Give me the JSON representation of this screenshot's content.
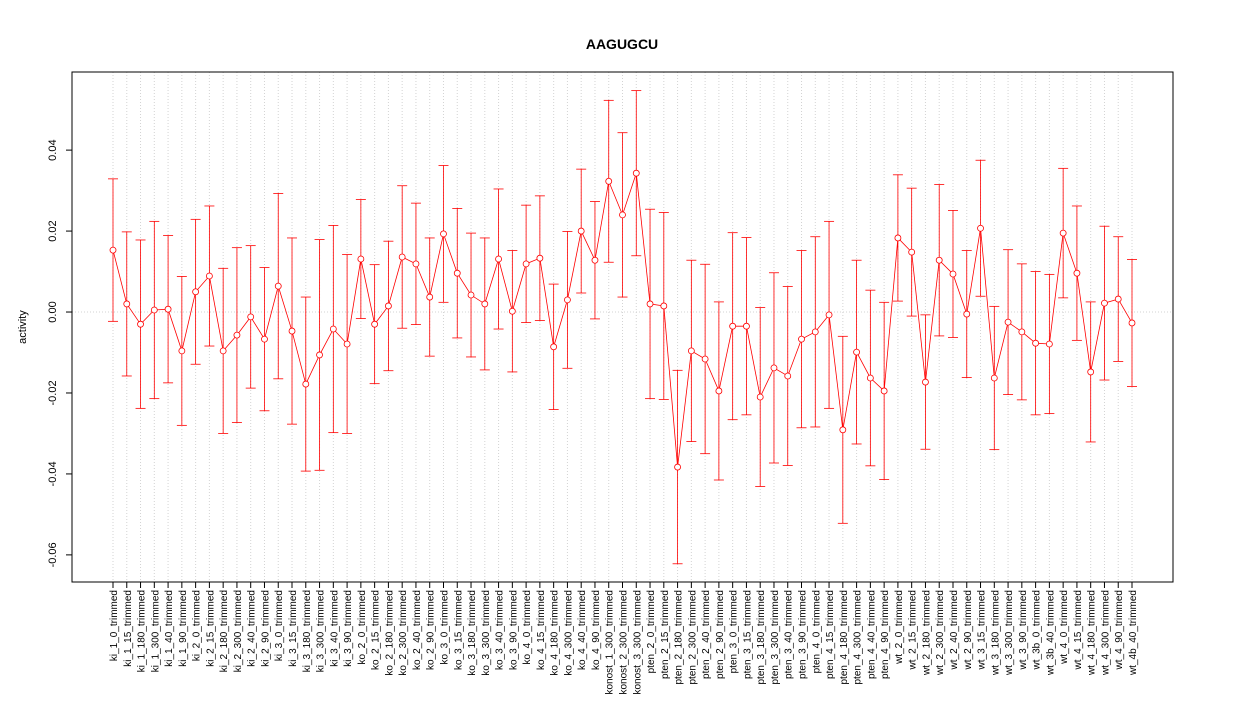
{
  "chart_data": {
    "type": "line_errorbar",
    "title": "AAGUGCU",
    "ylabel": "activity",
    "categories": [
      "ki_1_0_trimmed",
      "ki_1_15_trimmed",
      "ki_1_180_trimmed",
      "ki_1_300_trimmed",
      "ki_1_40_trimmed",
      "ki_1_90_trimmed",
      "ki_2_0_trimmed",
      "ki_2_15_trimmed",
      "ki_2_180_trimmed",
      "ki_2_300_trimmed",
      "ki_2_40_trimmed",
      "ki_2_90_trimmed",
      "ki_3_0_trimmed",
      "ki_3_15_trimmed",
      "ki_3_180_trimmed",
      "ki_3_300_trimmed",
      "ki_3_40_trimmed",
      "ki_3_90_trimmed",
      "ko_2_0_trimmed",
      "ko_2_15_trimmed",
      "ko_2_180_trimmed",
      "ko_2_300_trimmed",
      "ko_2_40_trimmed",
      "ko_2_90_trimmed",
      "ko_3_0_trimmed",
      "ko_3_15_trimmed",
      "ko_3_180_trimmed",
      "ko_3_300_trimmed",
      "ko_3_40_trimmed",
      "ko_3_90_trimmed",
      "ko_4_0_trimmed",
      "ko_4_15_trimmed",
      "ko_4_180_trimmed",
      "ko_4_300_trimmed",
      "ko_4_40_trimmed",
      "ko_4_90_trimmed",
      "konost_1_300_trimmed",
      "konost_2_300_trimmed",
      "konost_3_300_trimmed",
      "pten_2_0_trimmed",
      "pten_2_15_trimmed",
      "pten_2_180_trimmed",
      "pten_2_300_trimmed",
      "pten_2_40_trimmed",
      "pten_2_90_trimmed",
      "pten_3_0_trimmed",
      "pten_3_15_trimmed",
      "pten_3_180_trimmed",
      "pten_3_300_trimmed",
      "pten_3_40_trimmed",
      "pten_3_90_trimmed",
      "pten_4_0_trimmed",
      "pten_4_15_trimmed",
      "pten_4_180_trimmed",
      "pten_4_300_trimmed",
      "pten_4_40_trimmed",
      "pten_4_90_trimmed",
      "wt_2_0_trimmed",
      "wt_2_15_trimmed",
      "wt_2_180_trimmed",
      "wt_2_300_trimmed",
      "wt_2_40_trimmed",
      "wt_2_90_trimmed",
      "wt_3_15_trimmed",
      "wt_3_180_trimmed",
      "wt_3_300_trimmed",
      "wt_3_90_trimmed",
      "wt_3b_0_trimmed",
      "wt_3b_40_trimmed",
      "wt_4_0_trimmed",
      "wt_4_15_trimmed",
      "wt_4_180_trimmed",
      "wt_4_300_trimmed",
      "wt_4_90_trimmed",
      "wt_4b_40_trimmed"
    ],
    "values": [
      0.0153,
      0.002,
      -0.003,
      0.0005,
      0.0007,
      -0.0096,
      0.005,
      0.0089,
      -0.0096,
      -0.0057,
      -0.0012,
      -0.0067,
      0.0064,
      -0.0047,
      -0.0178,
      -0.0106,
      -0.0042,
      -0.0079,
      0.0131,
      -0.003,
      0.0015,
      0.0136,
      0.0119,
      0.0037,
      0.0193,
      0.0096,
      0.0042,
      0.002,
      0.0131,
      0.0002,
      0.0119,
      0.0133,
      -0.0086,
      0.003,
      0.02,
      0.0128,
      0.0323,
      0.024,
      0.0343,
      0.002,
      0.0015,
      -0.0383,
      -0.0096,
      -0.0116,
      -0.0195,
      -0.0035,
      -0.0035,
      -0.021,
      -0.0138,
      -0.0158,
      -0.0067,
      -0.0049,
      -0.0007,
      -0.0291,
      -0.0099,
      -0.0163,
      -0.0195,
      0.0183,
      0.0148,
      -0.0173,
      0.0128,
      0.0094,
      -0.0005,
      0.0207,
      -0.0163,
      -0.0025,
      -0.0049,
      -0.0077,
      -0.0079,
      0.0195,
      0.0096,
      -0.0148,
      0.0022,
      0.0032,
      -0.0027
    ],
    "errors": [
      0.0176,
      0.0178,
      0.0208,
      0.0219,
      0.0182,
      0.0184,
      0.0179,
      0.0173,
      0.0204,
      0.0216,
      0.0176,
      0.0177,
      0.0229,
      0.023,
      0.0215,
      0.0285,
      0.0256,
      0.0221,
      0.0147,
      0.0147,
      0.016,
      0.0176,
      0.015,
      0.0146,
      0.0169,
      0.016,
      0.0153,
      0.0163,
      0.0173,
      0.015,
      0.0145,
      0.0154,
      0.0155,
      0.0169,
      0.0153,
      0.0145,
      0.02,
      0.0203,
      0.0204,
      0.0234,
      0.0231,
      0.0239,
      0.0224,
      0.0234,
      0.022,
      0.0231,
      0.0219,
      0.0221,
      0.0235,
      0.0221,
      0.0219,
      0.0235,
      0.0231,
      0.0231,
      0.0227,
      0.0217,
      0.0219,
      0.0156,
      0.0158,
      0.0166,
      0.0187,
      0.0157,
      0.0157,
      0.0168,
      0.0177,
      0.0179,
      0.0168,
      0.0177,
      0.0172,
      0.016,
      0.0166,
      0.0173,
      0.019,
      0.0154,
      0.0157
    ],
    "color": "#ff0000",
    "ylim": [
      -0.0667,
      0.0593
    ],
    "yticks": [
      -0.06,
      -0.04,
      -0.02,
      {
        "value": 0,
        "label": "0.00"
      },
      0.02,
      0.04
    ],
    "grid": true,
    "hline": 0
  }
}
